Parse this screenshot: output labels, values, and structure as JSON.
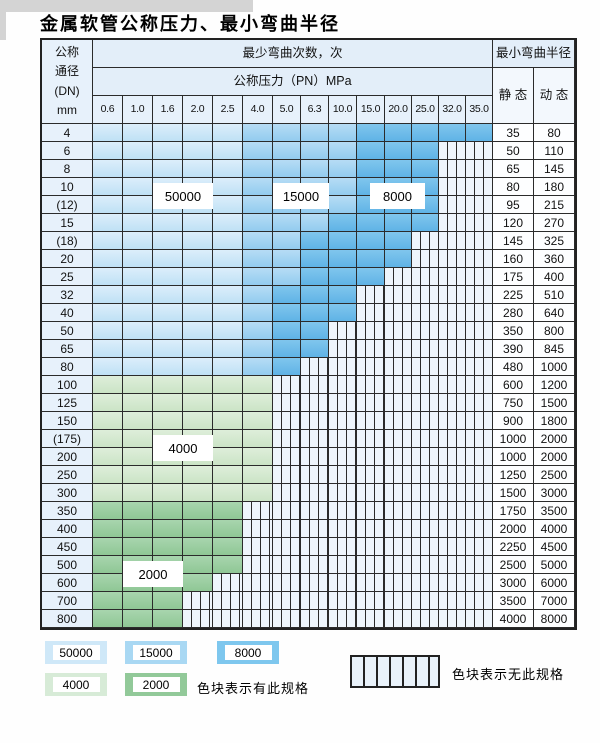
{
  "title": "金属软管公称压力、最小弯曲半径",
  "colors": {
    "band_50000": "#cfe8f8",
    "band_15000": "#a9d8f3",
    "band_8000": "#7ec7ee",
    "band_4000": "#d7ebd7",
    "band_2000": "#92c999",
    "hatch_bg": "#eef5fc",
    "header_bg": "#e3eef9",
    "grid_line": "#2b2b2b"
  },
  "table": {
    "corner_lines": [
      "公称",
      "通径",
      "(DN)",
      "mm"
    ],
    "bend_header": "最少弯曲次数，次",
    "pressure_header": "公称压力（PN）MPa",
    "pressures": [
      "0.6",
      "1.0",
      "1.6",
      "2.0",
      "2.5",
      "4.0",
      "5.0",
      "6.3",
      "10.0",
      "15.0",
      "20.0",
      "25.0",
      "32.0",
      "35.0"
    ],
    "radius_header": "最小弯曲半径",
    "static_label": "静 态",
    "dynamic_label": "动 态",
    "rows": [
      {
        "dn": "4",
        "codes": [
          "L",
          "L",
          "L",
          "L",
          "L",
          "M",
          "M",
          "M",
          "M",
          "D",
          "D",
          "D",
          "D",
          "D"
        ],
        "static": "35",
        "dynamic": "80"
      },
      {
        "dn": "6",
        "codes": [
          "L",
          "L",
          "L",
          "L",
          "L",
          "M",
          "M",
          "M",
          "M",
          "D",
          "D",
          "D",
          "H",
          "H"
        ],
        "static": "50",
        "dynamic": "110"
      },
      {
        "dn": "8",
        "codes": [
          "L",
          "L",
          "L",
          "L",
          "L",
          "M",
          "M",
          "M",
          "M",
          "D",
          "D",
          "D",
          "H",
          "H"
        ],
        "static": "65",
        "dynamic": "145"
      },
      {
        "dn": "10",
        "codes": [
          "L",
          "L",
          "L",
          "L",
          "L",
          "M",
          "M",
          "M",
          "M",
          "D",
          "D",
          "D",
          "H",
          "H"
        ],
        "static": "80",
        "dynamic": "180"
      },
      {
        "dn": "(12)",
        "codes": [
          "L",
          "L",
          "L",
          "L",
          "L",
          "M",
          "M",
          "M",
          "M",
          "D",
          "D",
          "D",
          "H",
          "H"
        ],
        "static": "95",
        "dynamic": "215"
      },
      {
        "dn": "15",
        "codes": [
          "L",
          "L",
          "L",
          "L",
          "L",
          "M",
          "M",
          "M",
          "D",
          "D",
          "D",
          "D",
          "H",
          "H"
        ],
        "static": "120",
        "dynamic": "270"
      },
      {
        "dn": "(18)",
        "codes": [
          "L",
          "L",
          "L",
          "L",
          "L",
          "M",
          "M",
          "D",
          "D",
          "D",
          "D",
          "H",
          "H",
          "H"
        ],
        "static": "145",
        "dynamic": "325"
      },
      {
        "dn": "20",
        "codes": [
          "L",
          "L",
          "L",
          "L",
          "L",
          "M",
          "M",
          "D",
          "D",
          "D",
          "D",
          "H",
          "H",
          "H"
        ],
        "static": "160",
        "dynamic": "360"
      },
      {
        "dn": "25",
        "codes": [
          "L",
          "L",
          "L",
          "L",
          "L",
          "M",
          "M",
          "D",
          "D",
          "D",
          "H",
          "H",
          "H",
          "H"
        ],
        "static": "175",
        "dynamic": "400"
      },
      {
        "dn": "32",
        "codes": [
          "L",
          "L",
          "L",
          "L",
          "L",
          "M",
          "D",
          "D",
          "D",
          "H",
          "H",
          "H",
          "H",
          "H"
        ],
        "static": "225",
        "dynamic": "510"
      },
      {
        "dn": "40",
        "codes": [
          "L",
          "L",
          "L",
          "L",
          "L",
          "M",
          "D",
          "D",
          "D",
          "H",
          "H",
          "H",
          "H",
          "H"
        ],
        "static": "280",
        "dynamic": "640"
      },
      {
        "dn": "50",
        "codes": [
          "L",
          "L",
          "L",
          "L",
          "L",
          "M",
          "D",
          "D",
          "H",
          "H",
          "H",
          "H",
          "H",
          "H"
        ],
        "static": "350",
        "dynamic": "800"
      },
      {
        "dn": "65",
        "codes": [
          "L",
          "L",
          "L",
          "L",
          "L",
          "M",
          "D",
          "D",
          "H",
          "H",
          "H",
          "H",
          "H",
          "H"
        ],
        "static": "390",
        "dynamic": "845"
      },
      {
        "dn": "80",
        "codes": [
          "L",
          "L",
          "L",
          "L",
          "L",
          "M",
          "D",
          "H",
          "H",
          "H",
          "H",
          "H",
          "H",
          "H"
        ],
        "static": "480",
        "dynamic": "1000"
      },
      {
        "dn": "100",
        "codes": [
          "G4",
          "G4",
          "G4",
          "G4",
          "G4",
          "G4",
          "H",
          "H",
          "H",
          "H",
          "H",
          "H",
          "H",
          "H"
        ],
        "static": "600",
        "dynamic": "1200"
      },
      {
        "dn": "125",
        "codes": [
          "G4",
          "G4",
          "G4",
          "G4",
          "G4",
          "G4",
          "H",
          "H",
          "H",
          "H",
          "H",
          "H",
          "H",
          "H"
        ],
        "static": "750",
        "dynamic": "1500"
      },
      {
        "dn": "150",
        "codes": [
          "G4",
          "G4",
          "G4",
          "G4",
          "G4",
          "G4",
          "H",
          "H",
          "H",
          "H",
          "H",
          "H",
          "H",
          "H"
        ],
        "static": "900",
        "dynamic": "1800"
      },
      {
        "dn": "(175)",
        "codes": [
          "G4",
          "G4",
          "G4",
          "G4",
          "G4",
          "G4",
          "H",
          "H",
          "H",
          "H",
          "H",
          "H",
          "H",
          "H"
        ],
        "static": "1000",
        "dynamic": "2000"
      },
      {
        "dn": "200",
        "codes": [
          "G4",
          "G4",
          "G4",
          "G4",
          "G4",
          "G4",
          "H",
          "H",
          "H",
          "H",
          "H",
          "H",
          "H",
          "H"
        ],
        "static": "1000",
        "dynamic": "2000"
      },
      {
        "dn": "250",
        "codes": [
          "G4",
          "G4",
          "G4",
          "G4",
          "G4",
          "G4",
          "H",
          "H",
          "H",
          "H",
          "H",
          "H",
          "H",
          "H"
        ],
        "static": "1250",
        "dynamic": "2500"
      },
      {
        "dn": "300",
        "codes": [
          "G4",
          "G4",
          "G4",
          "G4",
          "G4",
          "G4",
          "H",
          "H",
          "H",
          "H",
          "H",
          "H",
          "H",
          "H"
        ],
        "static": "1500",
        "dynamic": "3000"
      },
      {
        "dn": "350",
        "codes": [
          "G2",
          "G2",
          "G2",
          "G2",
          "G2",
          "H",
          "H",
          "H",
          "H",
          "H",
          "H",
          "H",
          "H",
          "H"
        ],
        "static": "1750",
        "dynamic": "3500"
      },
      {
        "dn": "400",
        "codes": [
          "G2",
          "G2",
          "G2",
          "G2",
          "G2",
          "H",
          "H",
          "H",
          "H",
          "H",
          "H",
          "H",
          "H",
          "H"
        ],
        "static": "2000",
        "dynamic": "4000"
      },
      {
        "dn": "450",
        "codes": [
          "G2",
          "G2",
          "G2",
          "G2",
          "G2",
          "H",
          "H",
          "H",
          "H",
          "H",
          "H",
          "H",
          "H",
          "H"
        ],
        "static": "2250",
        "dynamic": "4500"
      },
      {
        "dn": "500",
        "codes": [
          "G2",
          "G2",
          "G2",
          "G2",
          "G2",
          "H",
          "H",
          "H",
          "H",
          "H",
          "H",
          "H",
          "H",
          "H"
        ],
        "static": "2500",
        "dynamic": "5000"
      },
      {
        "dn": "600",
        "codes": [
          "G2",
          "G2",
          "G2",
          "G2",
          "H",
          "H",
          "H",
          "H",
          "H",
          "H",
          "H",
          "H",
          "H",
          "H"
        ],
        "static": "3000",
        "dynamic": "6000"
      },
      {
        "dn": "700",
        "codes": [
          "G2",
          "G2",
          "G2",
          "H",
          "H",
          "H",
          "H",
          "H",
          "H",
          "H",
          "H",
          "H",
          "H",
          "H"
        ],
        "static": "3500",
        "dynamic": "7000"
      },
      {
        "dn": "800",
        "codes": [
          "G2",
          "G2",
          "G2",
          "H",
          "H",
          "H",
          "H",
          "H",
          "H",
          "H",
          "H",
          "H",
          "H",
          "H"
        ],
        "static": "4000",
        "dynamic": "8000"
      }
    ]
  },
  "overlays": [
    {
      "label": "50000",
      "cols": [
        2,
        3
      ],
      "rows": [
        3,
        4
      ],
      "ox": 0
    },
    {
      "label": "15000",
      "cols": [
        6,
        7
      ],
      "rows": [
        3,
        4
      ],
      "ox": 0
    },
    {
      "label": "8000",
      "cols": [
        9,
        10
      ],
      "rows": [
        3,
        4
      ],
      "ox": 13
    },
    {
      "label": "4000",
      "cols": [
        2,
        3
      ],
      "rows": [
        17,
        18
      ],
      "ox": 0
    },
    {
      "label": "2000",
      "cols": [
        1,
        2
      ],
      "rows": [
        24,
        25
      ],
      "ox": 0
    }
  ],
  "legend": {
    "items": [
      {
        "label": "50000",
        "band": "L"
      },
      {
        "label": "15000",
        "band": "M"
      },
      {
        "label": "8000",
        "band": "D"
      },
      {
        "label": "4000",
        "band": "G4"
      },
      {
        "label": "2000",
        "band": "G2"
      }
    ],
    "present_note": "色块表示有此规格",
    "absent_note": "色块表示无此规格"
  }
}
